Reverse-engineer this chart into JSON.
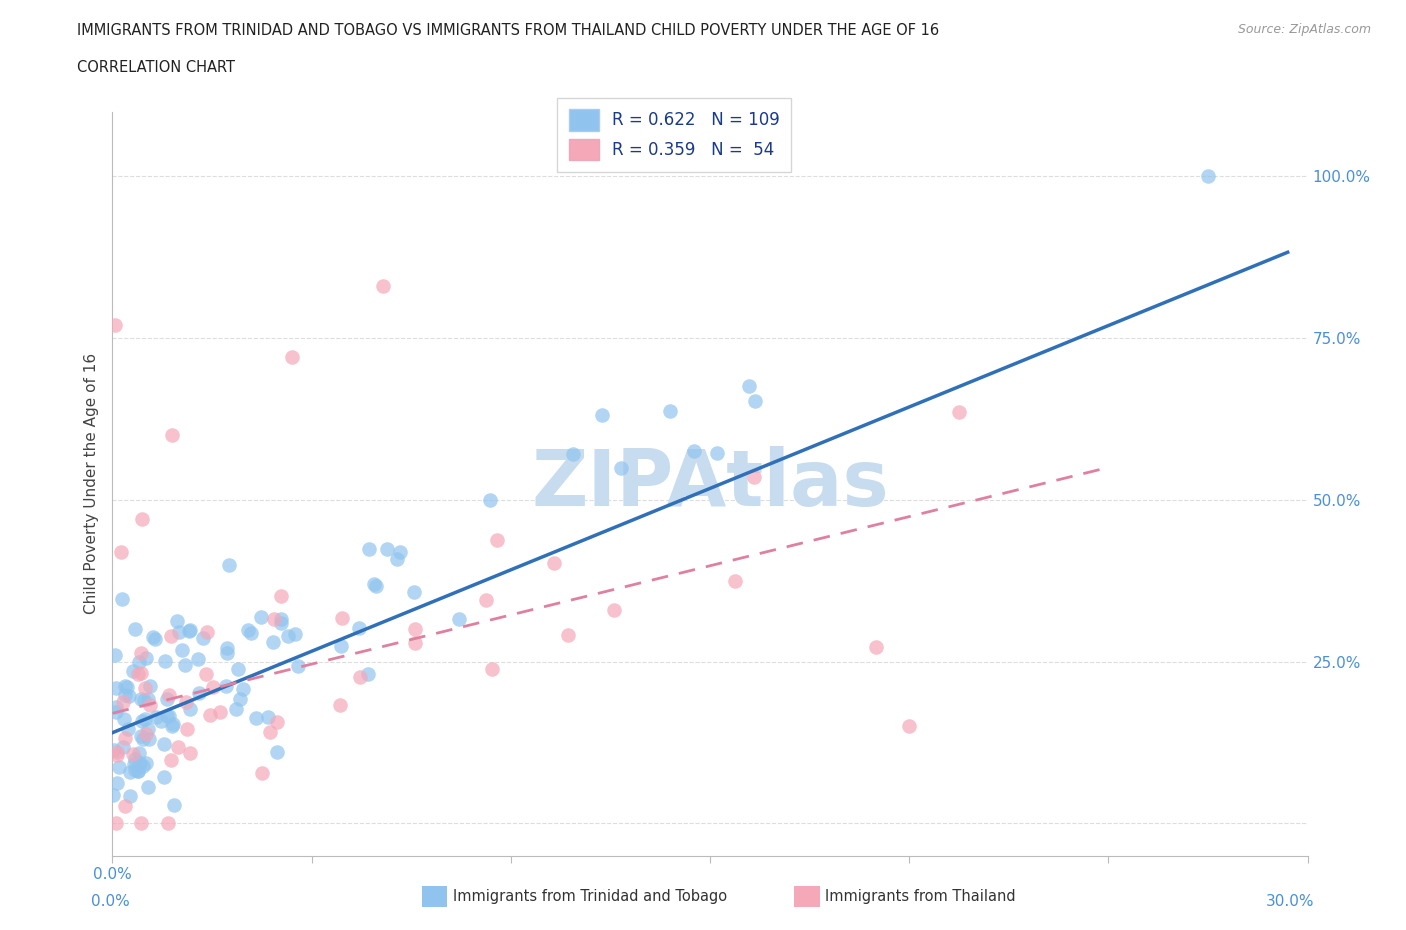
{
  "title_line1": "IMMIGRANTS FROM TRINIDAD AND TOBAGO VS IMMIGRANTS FROM THAILAND CHILD POVERTY UNDER THE AGE OF 16",
  "title_line2": "CORRELATION CHART",
  "source_text": "Source: ZipAtlas.com",
  "ylabel": "Child Poverty Under the Age of 16",
  "xlim": [
    0.0,
    0.3
  ],
  "ylim": [
    -0.05,
    1.1
  ],
  "xticks": [
    0.0,
    0.05,
    0.1,
    0.15,
    0.2,
    0.25,
    0.3
  ],
  "ytick_positions": [
    0.0,
    0.25,
    0.5,
    0.75,
    1.0
  ],
  "ytick_labels_right": [
    "",
    "25.0%",
    "50.0%",
    "75.0%",
    "100.0%"
  ],
  "r_tt": 0.622,
  "n_tt": 109,
  "r_th": 0.359,
  "n_th": 54,
  "color_tt": "#90C4EE",
  "color_th": "#F4A8B8",
  "line_color_tt": "#3070B8",
  "line_color_th": "#E080A0",
  "watermark": "ZIPAtlas",
  "watermark_color": "#C8DCF0",
  "background_color": "#FFFFFF",
  "grid_color": "#DDDDDD",
  "tick_label_color": "#4A90D9",
  "legend_label_color": "#1A3A8A",
  "source_color": "#999999",
  "title_color": "#222222",
  "ylabel_color": "#444444",
  "seed": 7
}
